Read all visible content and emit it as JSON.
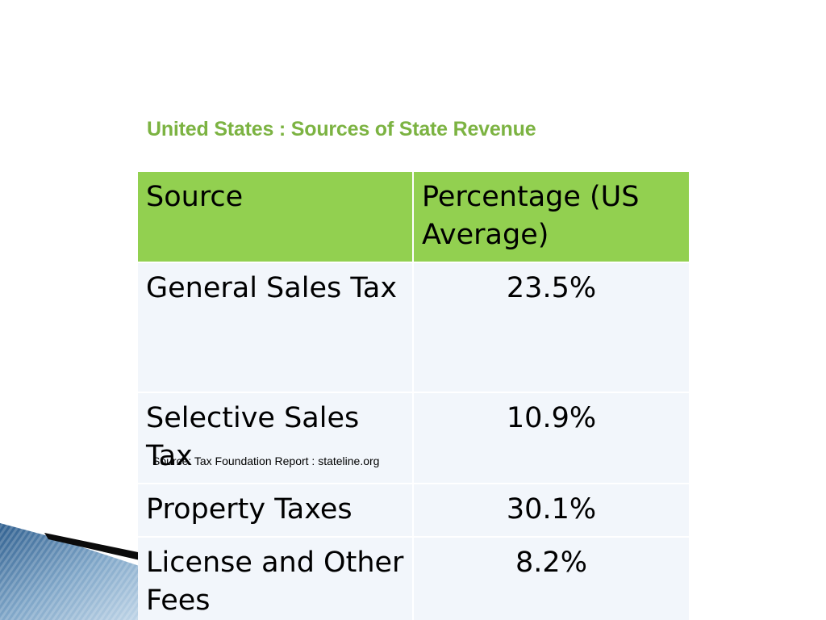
{
  "slide": {
    "title": "United States : Sources of State Revenue",
    "source_note": "Source: Tax Foundation Report : stateline.org",
    "accent_color": "#7cb342",
    "header_color": "#92d050",
    "row_color": "#f2f6fb"
  },
  "table": {
    "headers": [
      "Source",
      "Percentage (US Average)"
    ],
    "rows": [
      {
        "source": "General Sales Tax",
        "percentage": "23.5%"
      },
      {
        "source": "Selective Sales Tax",
        "percentage": "10.9%"
      },
      {
        "source": "Property Taxes",
        "percentage": "30.1%"
      },
      {
        "source": "License and Other Fees",
        "percentage": "8.2%"
      }
    ]
  }
}
